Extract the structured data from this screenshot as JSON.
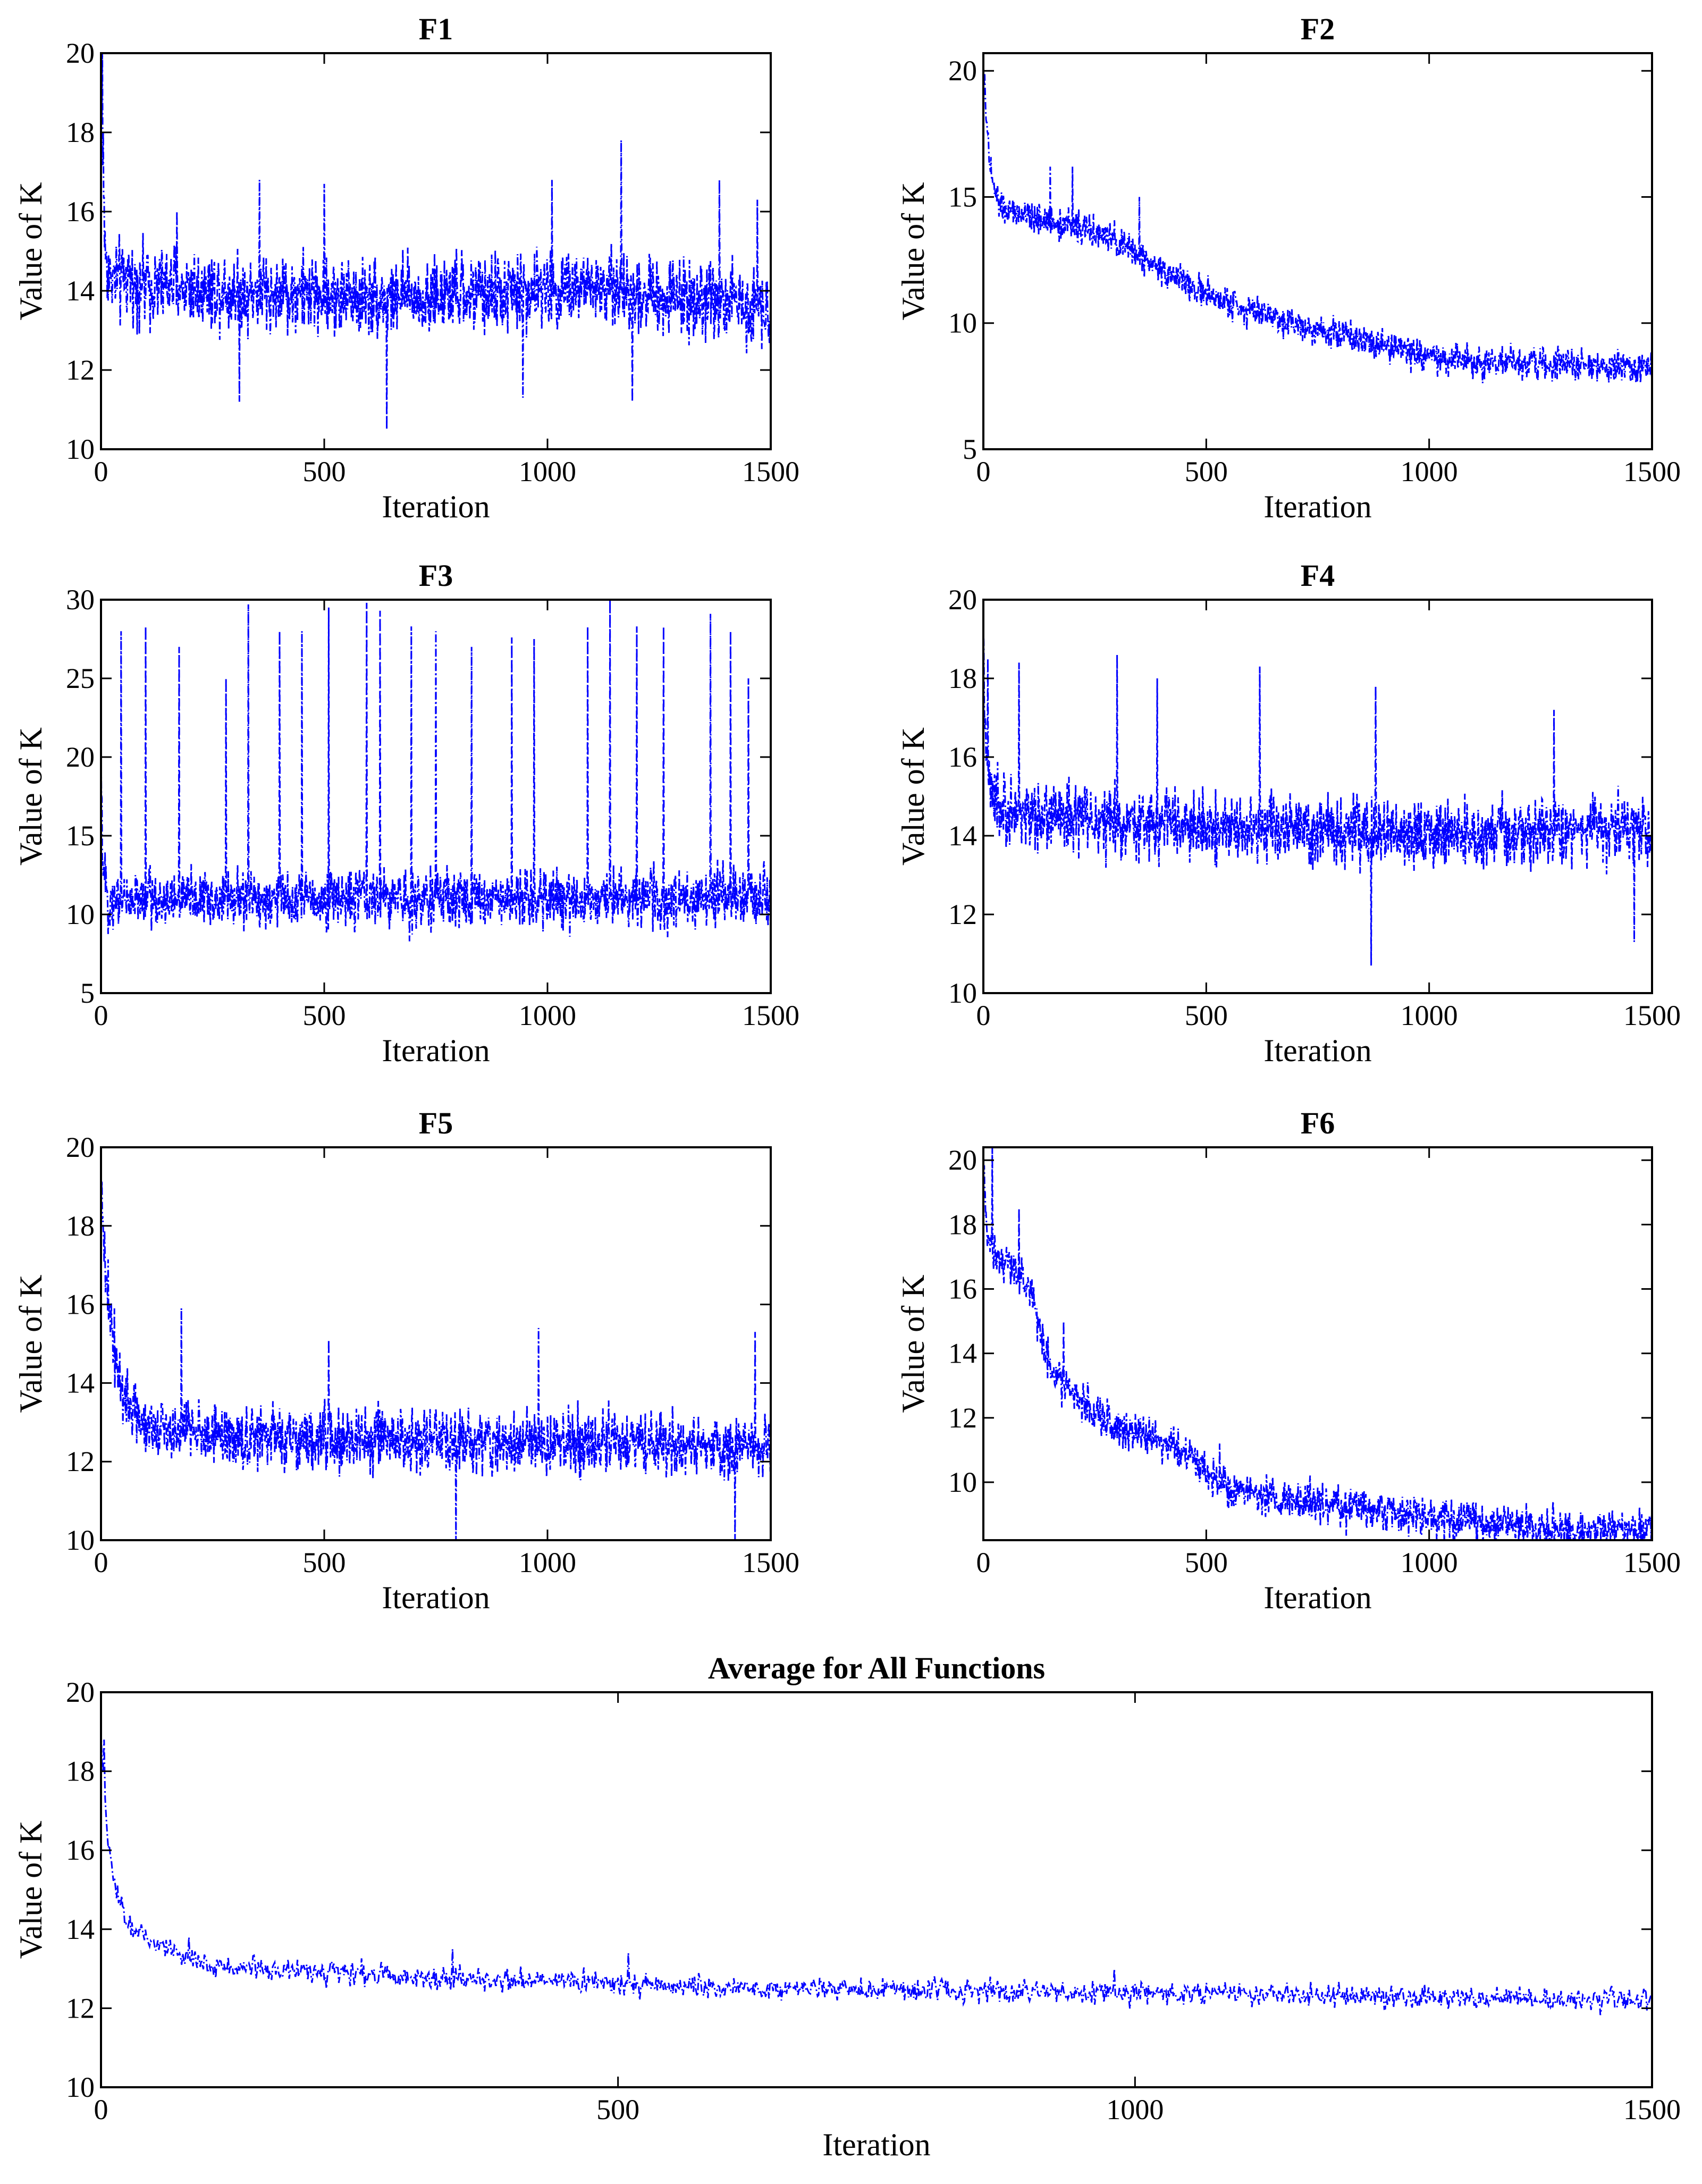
{
  "chart_data": [
    {
      "type": "line",
      "title": "F1",
      "xlabel": "Iteration",
      "ylabel": "Value of K",
      "xlim": [
        0,
        1500
      ],
      "ylim": [
        10,
        20
      ],
      "xticks": [
        0,
        500,
        1000,
        1500
      ],
      "yticks": [
        10,
        12,
        14,
        16,
        18,
        20
      ],
      "series": [
        {
          "name": "K",
          "color": "#0000ff",
          "start": 20.2,
          "decay_rate": 0.2,
          "trend": [
            [
              0,
              14.3
            ],
            [
              300,
              14.0
            ],
            [
              700,
              13.8
            ],
            [
              1100,
              14.1
            ],
            [
              1500,
              13.6
            ]
          ],
          "noise_band": 1.2,
          "spikes": [
            [
              3,
              20.2
            ],
            [
              5,
              18.0
            ],
            [
              170,
              16.0
            ],
            [
              310,
              11.2
            ],
            [
              355,
              16.8
            ],
            [
              500,
              16.7
            ],
            [
              640,
              10.5
            ],
            [
              945,
              11.3
            ],
            [
              1010,
              16.8
            ],
            [
              1165,
              17.8
            ],
            [
              1190,
              11.2
            ],
            [
              1385,
              16.8
            ],
            [
              1470,
              16.3
            ]
          ]
        }
      ]
    },
    {
      "type": "line",
      "title": "F2",
      "xlabel": "Iteration",
      "ylabel": "Value of K",
      "xlim": [
        0,
        1500
      ],
      "ylim": [
        5,
        20.7
      ],
      "xticks": [
        0,
        500,
        1000,
        1500
      ],
      "yticks": [
        5,
        10,
        15,
        20
      ],
      "series": [
        {
          "name": "K",
          "color": "#0000ff",
          "start": 20.5,
          "decay_rate": 0.08,
          "trend": [
            [
              0,
              14.5
            ],
            [
              200,
              13.9
            ],
            [
              300,
              13.2
            ],
            [
              500,
              11.1
            ],
            [
              700,
              10.0
            ],
            [
              900,
              9.2
            ],
            [
              1000,
              8.6
            ],
            [
              1200,
              8.4
            ],
            [
              1500,
              8.2
            ]
          ],
          "noise_band": 0.75,
          "spikes": [
            [
              10,
              17.5
            ],
            [
              150,
              16.2
            ],
            [
              200,
              16.2
            ],
            [
              350,
              15.0
            ],
            [
              1000,
              8.6
            ]
          ]
        }
      ]
    },
    {
      "type": "line",
      "title": "F3",
      "xlabel": "Iteration",
      "ylabel": "Value of K",
      "xlim": [
        0,
        1500
      ],
      "ylim": [
        5,
        30
      ],
      "xticks": [
        0,
        500,
        1000,
        1500
      ],
      "yticks": [
        5,
        10,
        15,
        20,
        25,
        30
      ],
      "series": [
        {
          "name": "K",
          "color": "#0000ff",
          "start": 20.0,
          "decay_rate": 0.3,
          "trend": [
            [
              0,
              11.0
            ],
            [
              1500,
              11.0
            ]
          ],
          "noise_band": 2.2,
          "spikes": [
            [
              45,
              28.0
            ],
            [
              100,
              28.3
            ],
            [
              175,
              27.0
            ],
            [
              280,
              25.0
            ],
            [
              330,
              29.7
            ],
            [
              400,
              28.0
            ],
            [
              450,
              28.0
            ],
            [
              510,
              29.5
            ],
            [
              595,
              29.8
            ],
            [
              625,
              29.3
            ],
            [
              695,
              28.3
            ],
            [
              750,
              28.0
            ],
            [
              830,
              27.0
            ],
            [
              920,
              27.6
            ],
            [
              970,
              27.5
            ],
            [
              1090,
              28.3
            ],
            [
              1140,
              30.0
            ],
            [
              1200,
              28.3
            ],
            [
              1260,
              28.3
            ],
            [
              1365,
              29.1
            ],
            [
              1410,
              28.0
            ],
            [
              1450,
              25.0
            ]
          ]
        }
      ]
    },
    {
      "type": "line",
      "title": "F4",
      "xlabel": "Iteration",
      "ylabel": "Value of K",
      "xlim": [
        0,
        1500
      ],
      "ylim": [
        10,
        20
      ],
      "xticks": [
        0,
        500,
        1000,
        1500
      ],
      "yticks": [
        10,
        12,
        14,
        16,
        18,
        20
      ],
      "series": [
        {
          "name": "K",
          "color": "#0000ff",
          "start": 18.7,
          "decay_rate": 0.15,
          "trend": [
            [
              0,
              14.7
            ],
            [
              300,
              14.3
            ],
            [
              800,
              14.1
            ],
            [
              1100,
              14.0
            ],
            [
              1500,
              14.2
            ]
          ],
          "noise_band": 1.05,
          "spikes": [
            [
              10,
              18.5
            ],
            [
              80,
              18.4
            ],
            [
              300,
              18.6
            ],
            [
              390,
              18.0
            ],
            [
              620,
              18.3
            ],
            [
              870,
              10.7
            ],
            [
              880,
              17.8
            ],
            [
              1280,
              17.2
            ],
            [
              1460,
              11.3
            ]
          ]
        }
      ]
    },
    {
      "type": "line",
      "title": "F5",
      "xlabel": "Iteration",
      "ylabel": "Value of K",
      "xlim": [
        0,
        1500
      ],
      "ylim": [
        10,
        20
      ],
      "xticks": [
        0,
        500,
        1000,
        1500
      ],
      "yticks": [
        10,
        12,
        14,
        16,
        18,
        20
      ],
      "series": [
        {
          "name": "K",
          "color": "#0000ff",
          "start": 19.2,
          "decay_rate": 0.05,
          "trend": [
            [
              0,
              13.6
            ],
            [
              100,
              13.0
            ],
            [
              300,
              12.6
            ],
            [
              1500,
              12.4
            ]
          ],
          "noise_band": 0.95,
          "spikes": [
            [
              30,
              15.9
            ],
            [
              180,
              15.9
            ],
            [
              510,
              15.1
            ],
            [
              795,
              10.0
            ],
            [
              980,
              15.4
            ],
            [
              1420,
              10.0
            ],
            [
              1465,
              15.3
            ]
          ]
        }
      ]
    },
    {
      "type": "line",
      "title": "F6",
      "xlabel": "Iteration",
      "ylabel": "Value of K",
      "xlim": [
        0,
        1500
      ],
      "ylim": [
        8.2,
        20.4
      ],
      "xticks": [
        0,
        500,
        1000,
        1500
      ],
      "yticks": [
        10,
        12,
        14,
        16,
        18,
        20
      ],
      "series": [
        {
          "name": "K",
          "color": "#0000ff",
          "start": 20.4,
          "decay_rate": 0.2,
          "trend": [
            [
              0,
              17.5
            ],
            [
              100,
              16.2
            ],
            [
              150,
              13.5
            ],
            [
              250,
              12.0
            ],
            [
              450,
              11.0
            ],
            [
              550,
              9.8
            ],
            [
              700,
              9.4
            ],
            [
              1000,
              8.9
            ],
            [
              1200,
              8.6
            ],
            [
              1500,
              8.5
            ]
          ],
          "noise_band": 0.75,
          "spikes": [
            [
              20,
              20.4
            ],
            [
              80,
              18.5
            ],
            [
              180,
              15.0
            ],
            [
              530,
              11.2
            ]
          ]
        }
      ]
    },
    {
      "type": "line",
      "title": "Average for All Functions",
      "xlabel": "Iteration",
      "ylabel": "Value of K",
      "xlim": [
        0,
        1500
      ],
      "ylim": [
        10,
        20
      ],
      "xticks": [
        0,
        500,
        1000,
        1500
      ],
      "yticks": [
        10,
        12,
        14,
        16,
        18,
        20
      ],
      "series": [
        {
          "name": "K",
          "color": "#0000ff",
          "start": 18.8,
          "decay_rate": 0.12,
          "trend": [
            [
              0,
              14.6
            ],
            [
              30,
              13.9
            ],
            [
              100,
              13.1
            ],
            [
              300,
              12.8
            ],
            [
              600,
              12.5
            ],
            [
              1000,
              12.4
            ],
            [
              1500,
              12.2
            ]
          ],
          "noise_band": 0.35,
          "spikes": [
            [
              3,
              18.8
            ],
            [
              85,
              13.8
            ],
            [
              340,
              13.5
            ],
            [
              510,
              13.4
            ],
            [
              980,
              13.0
            ]
          ]
        }
      ]
    }
  ]
}
